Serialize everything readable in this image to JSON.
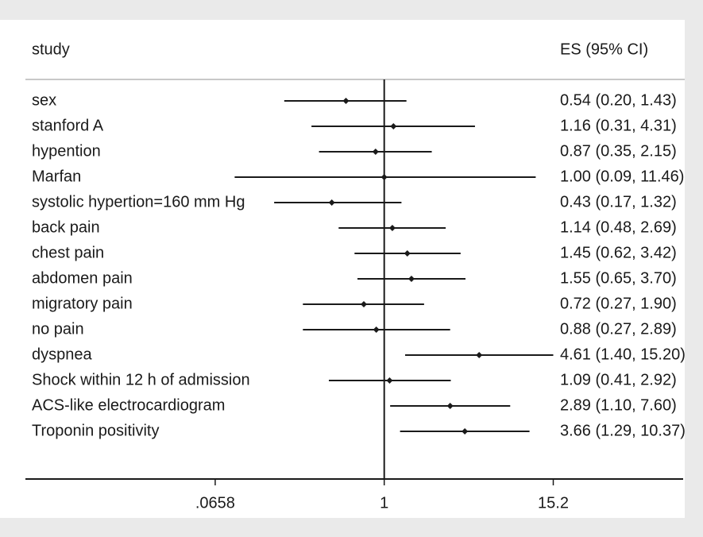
{
  "chart_data": {
    "type": "forest",
    "column_headers": [
      "study",
      "ES (95% CI)"
    ],
    "categories": [
      "sex",
      "stanford A",
      "hypention",
      "Marfan",
      "systolic hypertion=160 mm Hg",
      "back pain",
      "chest pain",
      "abdomen pain",
      "migratory pain",
      "no pain",
      "dyspnea",
      "Shock within 12 h of admission",
      "ACS-like electrocardiogram",
      "Troponin positivity"
    ],
    "values": [
      0.54,
      1.16,
      0.87,
      1.0,
      0.43,
      1.14,
      1.45,
      1.55,
      0.72,
      0.88,
      4.61,
      1.09,
      2.89,
      3.66
    ],
    "lower": [
      0.2,
      0.31,
      0.35,
      0.09,
      0.17,
      0.48,
      0.62,
      0.65,
      0.27,
      0.27,
      1.4,
      0.41,
      1.1,
      1.29
    ],
    "upper": [
      1.43,
      4.31,
      2.15,
      11.46,
      1.32,
      2.69,
      3.42,
      3.7,
      1.9,
      2.89,
      15.2,
      2.92,
      7.6,
      10.37
    ],
    "value_labels": [
      "0.54 (0.20, 1.43)",
      "1.16 (0.31, 4.31)",
      "0.87 (0.35, 2.15)",
      "1.00 (0.09, 11.46)",
      "0.43 (0.17, 1.32)",
      "1.14 (0.48, 2.69)",
      "1.45 (0.62, 3.42)",
      "1.55 (0.65, 3.70)",
      "0.72 (0.27, 1.90)",
      "0.88 (0.27, 2.89)",
      "4.61 (1.40, 15.20)",
      "1.09 (0.41, 2.92)",
      "2.89 (1.10, 7.60)",
      "3.66 (1.29, 10.37)"
    ],
    "log_scale": true,
    "xlim": [
      0.0031,
      123
    ],
    "xticks": [
      {
        "value": 0.0658,
        "label": ".0658"
      },
      1,
      15.2
    ],
    "reference_line": 1,
    "color": "#1a1a1a"
  }
}
